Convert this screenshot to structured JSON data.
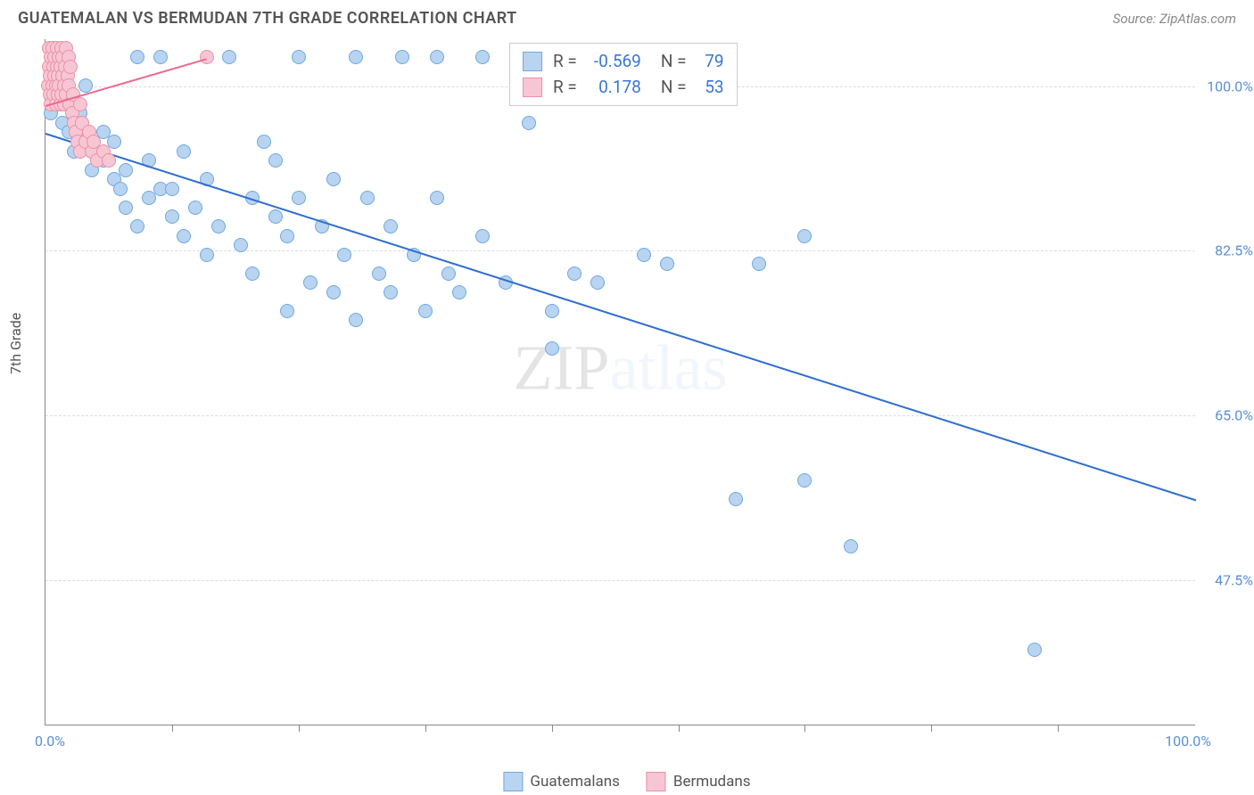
{
  "header": {
    "title": "GUATEMALAN VS BERMUDAN 7TH GRADE CORRELATION CHART",
    "source": "Source: ZipAtlas.com"
  },
  "chart": {
    "type": "scatter",
    "ylabel": "7th Grade",
    "xlim": [
      0,
      100
    ],
    "ylim": [
      32,
      105
    ],
    "x_axis_min_label": "0.0%",
    "x_axis_max_label": "100.0%",
    "y_ticks": [
      {
        "value": 100.0,
        "label": "100.0%"
      },
      {
        "value": 82.5,
        "label": "82.5%"
      },
      {
        "value": 65.0,
        "label": "65.0%"
      },
      {
        "value": 47.5,
        "label": "47.5%"
      }
    ],
    "x_tick_positions": [
      11,
      22,
      33,
      44,
      55,
      66,
      77,
      88
    ],
    "background_color": "#ffffff",
    "grid_color": "#dddddd",
    "axis_color": "#888888",
    "tick_label_color": "#5a8fd6",
    "watermark": "ZIPatlas",
    "series": [
      {
        "name": "Guatemalans",
        "marker_fill": "#b8d4f0",
        "marker_stroke": "#6fa8e0",
        "marker_radius": 8,
        "trend_color": "#2f6fd0",
        "trend_line": {
          "x1": 0,
          "y1": 95,
          "x2": 100,
          "y2": 56
        },
        "R": "-0.569",
        "N": "79",
        "points": [
          [
            0.5,
            97
          ],
          [
            1,
            100
          ],
          [
            1,
            98
          ],
          [
            1.5,
            96
          ],
          [
            2,
            103
          ],
          [
            2,
            95
          ],
          [
            2.5,
            93
          ],
          [
            3,
            94
          ],
          [
            3,
            97
          ],
          [
            3.5,
            100
          ],
          [
            4,
            93
          ],
          [
            4,
            91
          ],
          [
            5,
            95
          ],
          [
            5,
            92
          ],
          [
            6,
            94
          ],
          [
            6,
            90
          ],
          [
            6.5,
            89
          ],
          [
            7,
            91
          ],
          [
            7,
            87
          ],
          [
            8,
            103
          ],
          [
            8,
            85
          ],
          [
            9,
            92
          ],
          [
            9,
            88
          ],
          [
            10,
            89
          ],
          [
            10,
            103
          ],
          [
            11,
            86
          ],
          [
            11,
            89
          ],
          [
            12,
            84
          ],
          [
            12,
            93
          ],
          [
            13,
            87
          ],
          [
            14,
            82
          ],
          [
            14,
            90
          ],
          [
            15,
            85
          ],
          [
            16,
            103
          ],
          [
            17,
            83
          ],
          [
            18,
            88
          ],
          [
            18,
            80
          ],
          [
            19,
            94
          ],
          [
            20,
            92
          ],
          [
            20,
            86
          ],
          [
            21,
            76
          ],
          [
            21,
            84
          ],
          [
            22,
            103
          ],
          [
            22,
            88
          ],
          [
            23,
            79
          ],
          [
            24,
            85
          ],
          [
            25,
            78
          ],
          [
            25,
            90
          ],
          [
            26,
            82
          ],
          [
            27,
            103
          ],
          [
            27,
            75
          ],
          [
            28,
            88
          ],
          [
            29,
            80
          ],
          [
            30,
            85
          ],
          [
            30,
            78
          ],
          [
            31,
            103
          ],
          [
            32,
            82
          ],
          [
            33,
            76
          ],
          [
            34,
            88
          ],
          [
            34,
            103
          ],
          [
            35,
            80
          ],
          [
            36,
            78
          ],
          [
            38,
            103
          ],
          [
            38,
            84
          ],
          [
            40,
            79
          ],
          [
            42,
            96
          ],
          [
            44,
            76
          ],
          [
            44,
            72
          ],
          [
            46,
            80
          ],
          [
            48,
            79
          ],
          [
            52,
            82
          ],
          [
            54,
            81
          ],
          [
            58,
            103
          ],
          [
            60,
            56
          ],
          [
            62,
            81
          ],
          [
            66,
            84
          ],
          [
            66,
            58
          ],
          [
            70,
            51
          ],
          [
            86,
            40
          ]
        ]
      },
      {
        "name": "Bermudans",
        "marker_fill": "#f7c6d4",
        "marker_stroke": "#ec8fa8",
        "marker_radius": 8,
        "trend_color": "#ec6a8e",
        "trend_line": {
          "x1": 0,
          "y1": 98,
          "x2": 14,
          "y2": 103
        },
        "R": "0.178",
        "N": "53",
        "points": [
          [
            0.2,
            100
          ],
          [
            0.3,
            102
          ],
          [
            0.3,
            104
          ],
          [
            0.4,
            99
          ],
          [
            0.4,
            101
          ],
          [
            0.5,
            103
          ],
          [
            0.5,
            98
          ],
          [
            0.6,
            100
          ],
          [
            0.6,
            104
          ],
          [
            0.7,
            102
          ],
          [
            0.7,
            99
          ],
          [
            0.8,
            101
          ],
          [
            0.8,
            103
          ],
          [
            0.9,
            100
          ],
          [
            0.9,
            98
          ],
          [
            1.0,
            102
          ],
          [
            1.0,
            104
          ],
          [
            1.1,
            99
          ],
          [
            1.1,
            101
          ],
          [
            1.2,
            103
          ],
          [
            1.2,
            100
          ],
          [
            1.3,
            98
          ],
          [
            1.3,
            102
          ],
          [
            1.4,
            104
          ],
          [
            1.4,
            99
          ],
          [
            1.5,
            101
          ],
          [
            1.5,
            103
          ],
          [
            1.6,
            100
          ],
          [
            1.6,
            98
          ],
          [
            1.7,
            102
          ],
          [
            1.8,
            104
          ],
          [
            1.8,
            99
          ],
          [
            1.9,
            101
          ],
          [
            2.0,
            103
          ],
          [
            2.0,
            100
          ],
          [
            2.1,
            98
          ],
          [
            2.2,
            102
          ],
          [
            2.3,
            97
          ],
          [
            2.4,
            99
          ],
          [
            2.5,
            96
          ],
          [
            2.6,
            95
          ],
          [
            2.8,
            94
          ],
          [
            3.0,
            98
          ],
          [
            3.0,
            93
          ],
          [
            3.2,
            96
          ],
          [
            3.5,
            94
          ],
          [
            3.8,
            95
          ],
          [
            4.0,
            93
          ],
          [
            4.2,
            94
          ],
          [
            4.5,
            92
          ],
          [
            5.0,
            93
          ],
          [
            5.5,
            92
          ],
          [
            14,
            103
          ]
        ]
      }
    ],
    "stats_box": {
      "rows": [
        {
          "swatch_fill": "#b8d4f0",
          "swatch_border": "#6fa8e0",
          "R_label": "R =",
          "R": "-0.569",
          "N_label": "N =",
          "N": "79"
        },
        {
          "swatch_fill": "#f7c6d4",
          "swatch_border": "#ec8fa8",
          "R_label": "R =",
          "R": "0.178",
          "N_label": "N =",
          "N": "53"
        }
      ]
    },
    "bottom_legend": [
      {
        "swatch_fill": "#b8d4f0",
        "swatch_border": "#6fa8e0",
        "label": "Guatemalans"
      },
      {
        "swatch_fill": "#f7c6d4",
        "swatch_border": "#ec8fa8",
        "label": "Bermudans"
      }
    ]
  }
}
